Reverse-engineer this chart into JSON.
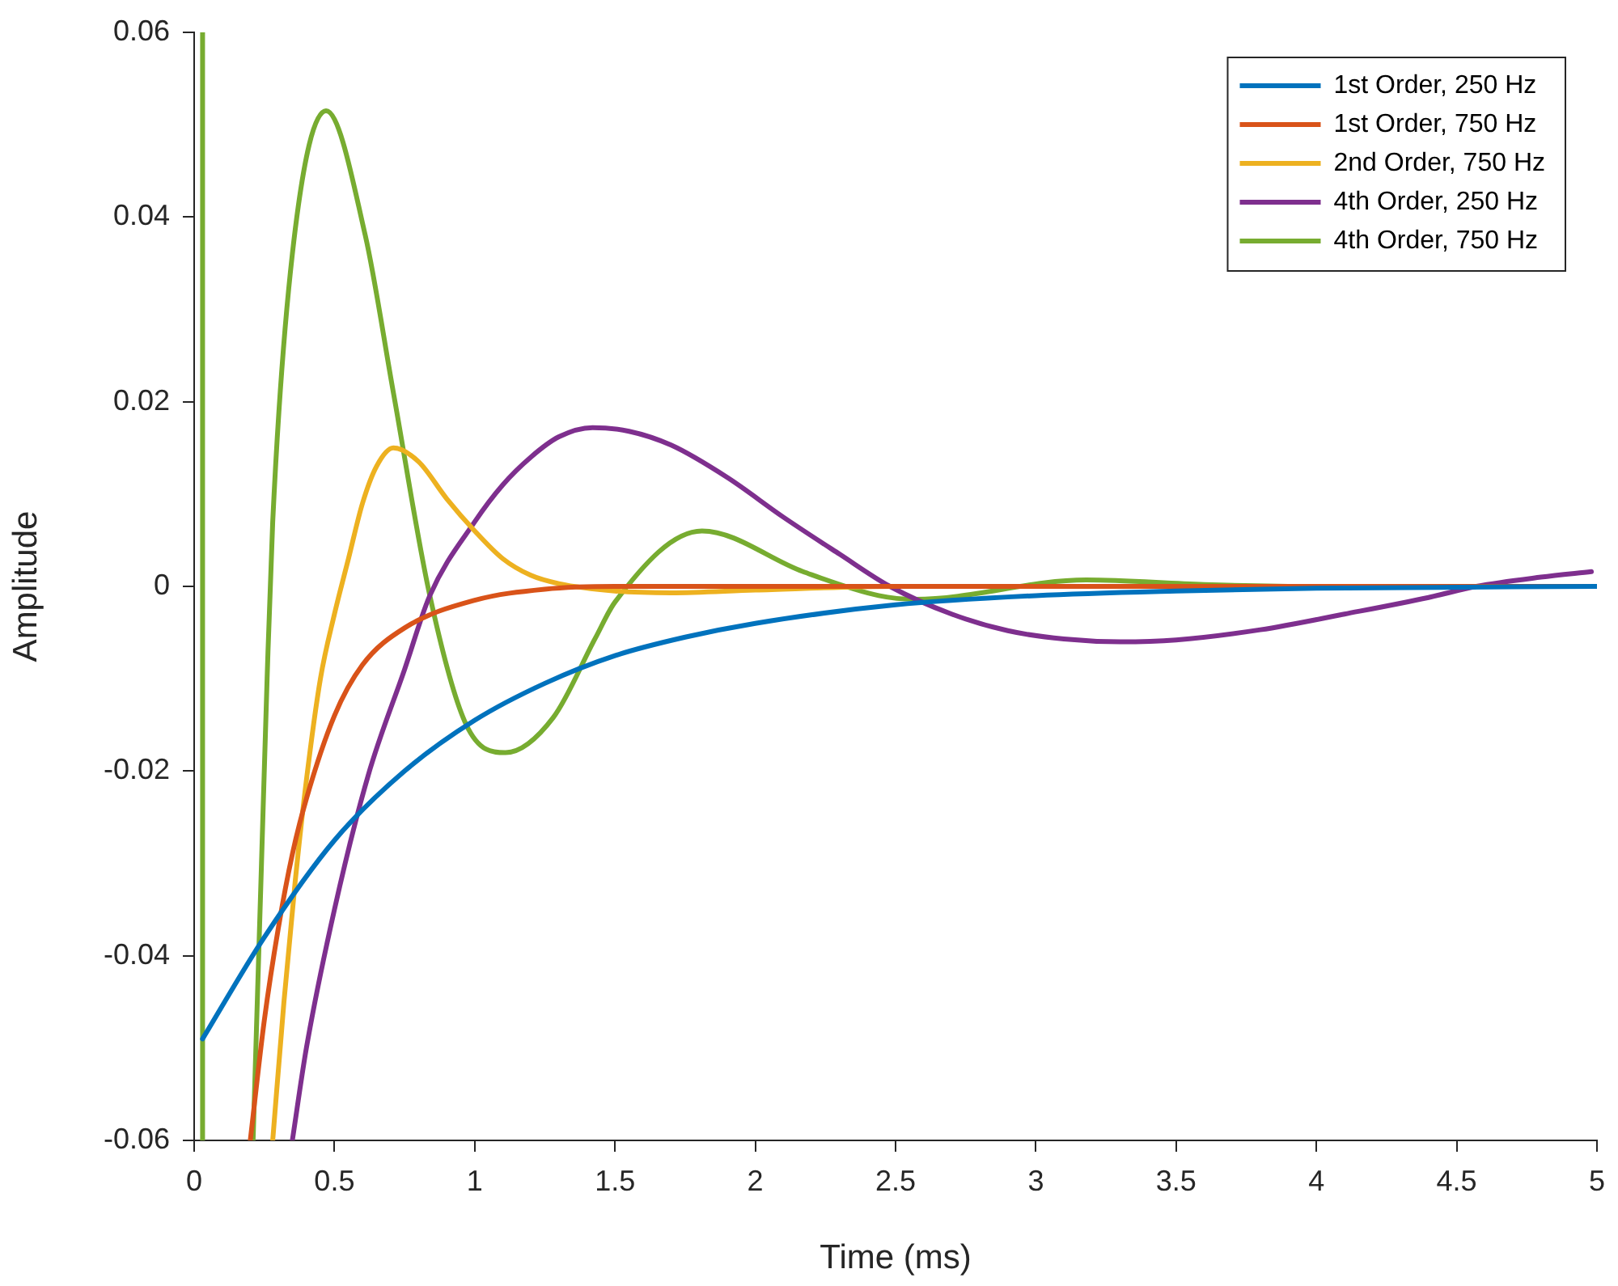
{
  "chart_data": {
    "type": "line",
    "xlabel": "Time (ms)",
    "ylabel": "Amplitude",
    "xlim": [
      0,
      5
    ],
    "xticks": [
      0,
      0.5,
      1,
      1.5,
      2,
      2.5,
      3,
      3.5,
      4,
      4.5,
      5
    ],
    "ylim": [
      -0.06,
      0.06
    ],
    "yticks": [
      -0.06,
      -0.04,
      -0.02,
      0,
      0.02,
      0.04,
      0.06
    ],
    "grid": false,
    "legend": "top right",
    "marker": "none",
    "line_style": "solid",
    "series": [
      {
        "name": "1st Order, 250 Hz",
        "color": "#0072bd",
        "x": [
          0.03,
          0.25,
          0.5,
          0.75,
          1,
          1.25,
          1.5,
          1.75,
          2,
          2.5,
          3,
          3.5,
          4,
          5
        ],
        "values": [
          -0.049,
          -0.038,
          -0.0275,
          -0.02,
          -0.0145,
          -0.0105,
          -0.0075,
          -0.0055,
          -0.004,
          -0.002,
          -0.001,
          -0.0005,
          -0.0002,
          0
        ]
      },
      {
        "name": "1st Order, 750 Hz",
        "color": "#d95319",
        "x": [
          0.2,
          0.25,
          0.3,
          0.35,
          0.4,
          0.5,
          0.6,
          0.75,
          1,
          1.25,
          1.5,
          5
        ],
        "values": [
          -0.06,
          -0.047,
          -0.037,
          -0.029,
          -0.023,
          -0.014,
          -0.0085,
          -0.0045,
          -0.0015,
          -0.0003,
          0,
          0
        ]
      },
      {
        "name": "2nd Order, 750 Hz",
        "color": "#edb120",
        "x": [
          0.28,
          0.32,
          0.36,
          0.4,
          0.45,
          0.5,
          0.55,
          0.6,
          0.65,
          0.71,
          0.8,
          0.9,
          1,
          1.1,
          1.2,
          1.3,
          1.5,
          1.7,
          2,
          2.5,
          5
        ],
        "values": [
          -0.06,
          -0.045,
          -0.032,
          -0.021,
          -0.01,
          -0.003,
          0.003,
          0.009,
          0.013,
          0.015,
          0.0135,
          0.0095,
          0.006,
          0.003,
          0.0012,
          0.0003,
          -0.0005,
          -0.0007,
          -0.0004,
          0,
          0
        ]
      },
      {
        "name": "4th Order, 250 Hz",
        "color": "#7e2f8e",
        "x": [
          0.35,
          0.4,
          0.5,
          0.62,
          0.75,
          0.84,
          1,
          1.1,
          1.2,
          1.3,
          1.42,
          1.55,
          1.7,
          1.9,
          2.1,
          2.3,
          2.48,
          2.7,
          2.9,
          3.1,
          3.3,
          3.5,
          3.8,
          4.1,
          4.4,
          4.57,
          4.8,
          4.98
        ],
        "values": [
          -0.06,
          -0.05,
          -0.035,
          -0.0205,
          -0.009,
          -0.001,
          0.007,
          0.011,
          0.014,
          0.0162,
          0.0172,
          0.0168,
          0.0153,
          0.0118,
          0.0075,
          0.0035,
          0,
          -0.003,
          -0.0048,
          -0.0057,
          -0.006,
          -0.0058,
          -0.0047,
          -0.003,
          -0.0012,
          0,
          0.001,
          0.0016
        ]
      },
      {
        "name": "4th Order, 750 Hz",
        "color": "#77ac30",
        "x": [
          0.03,
          0.03,
          0.1,
          0.21,
          0.24,
          0.26,
          0.28,
          0.35,
          0.47,
          0.61,
          0.71,
          0.84,
          0.97,
          1.11,
          1.28,
          1.43,
          1.5,
          1.81,
          2.17,
          2.44,
          2.57,
          3.18,
          3.6,
          4,
          5
        ],
        "values": [
          -0.06,
          0.06,
          null,
          -0.06,
          -0.03,
          -0.01,
          0.007,
          0.036,
          0.0515,
          0.038,
          0.021,
          -0.001,
          -0.015,
          -0.018,
          -0.0142,
          -0.0056,
          -0.0017,
          0.006,
          0.0016,
          -0.001,
          -0.0014,
          0.0007,
          0.0002,
          0,
          0
        ]
      }
    ]
  }
}
